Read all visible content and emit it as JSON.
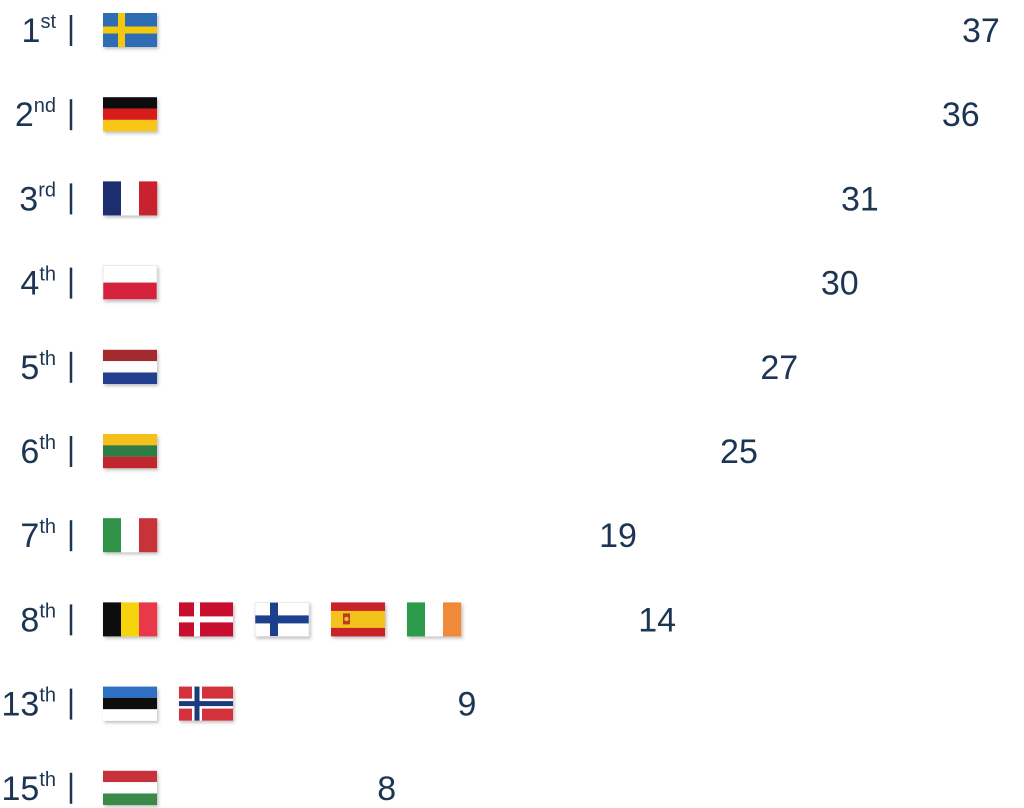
{
  "chart_data": {
    "type": "bar",
    "orientation": "horizontal",
    "rows": [
      {
        "rank_num": "1",
        "rank_suffix": "st",
        "flags": [
          "sweden"
        ],
        "value": 37
      },
      {
        "rank_num": "2",
        "rank_suffix": "nd",
        "flags": [
          "germany"
        ],
        "value": 36
      },
      {
        "rank_num": "3",
        "rank_suffix": "rd",
        "flags": [
          "france"
        ],
        "value": 31
      },
      {
        "rank_num": "4",
        "rank_suffix": "th",
        "flags": [
          "poland"
        ],
        "value": 30
      },
      {
        "rank_num": "5",
        "rank_suffix": "th",
        "flags": [
          "netherlands"
        ],
        "value": 27
      },
      {
        "rank_num": "6",
        "rank_suffix": "th",
        "flags": [
          "lithuania"
        ],
        "value": 25
      },
      {
        "rank_num": "7",
        "rank_suffix": "th",
        "flags": [
          "italy"
        ],
        "value": 19
      },
      {
        "rank_num": "8",
        "rank_suffix": "th",
        "flags": [
          "belgium",
          "denmark",
          "finland",
          "spain",
          "ireland"
        ],
        "value": 14
      },
      {
        "rank_num": "13",
        "rank_suffix": "th",
        "flags": [
          "estonia",
          "norway"
        ],
        "value": 9
      },
      {
        "rank_num": "15",
        "rank_suffix": "th",
        "flags": [
          "hungary"
        ],
        "value": 8
      }
    ],
    "bar_gradient": [
      "#f5821f",
      "#e8364a"
    ],
    "text_color": "#1c3552",
    "xlim": [
      0,
      37
    ]
  }
}
